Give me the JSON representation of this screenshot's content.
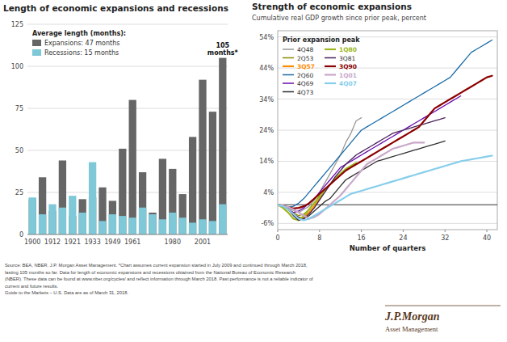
{
  "chart_data": [
    {
      "type": "bar",
      "title": "Length of economic expansions and recessions",
      "legend_title": "Average length (months):",
      "categories": [
        "1900",
        null,
        "1912",
        null,
        "1921",
        null,
        "1933",
        null,
        "1949",
        null,
        "1961",
        null,
        null,
        null,
        "1980",
        null,
        null,
        "2001",
        null,
        null
      ],
      "series": [
        {
          "name": "Expansions: 47 months",
          "color": "#666666",
          "values": [
            21,
            34,
            14,
            44,
            11,
            21,
            22,
            28,
            20,
            51,
            80,
            37,
            13,
            45,
            39,
            24,
            58,
            92,
            73,
            105
          ]
        },
        {
          "name": "Recessions: 15 months",
          "color": "#7EC8D8",
          "values": [
            22,
            12,
            18,
            16,
            23,
            13,
            43,
            8,
            12,
            11,
            10,
            16,
            12,
            9,
            13,
            10,
            7,
            9,
            8,
            18
          ]
        }
      ],
      "stacked": false,
      "ylim": [
        0,
        125
      ],
      "yticks": [
        0,
        25,
        50,
        75,
        100,
        125
      ],
      "grid": true,
      "legend": "upper left",
      "annotations": [
        {
          "text": "105\nmonths*",
          "x": 19,
          "y": 105
        }
      ]
    },
    {
      "type": "line",
      "title": "Strength of economic expansions",
      "subtitle": "Cumulative real GDP growth since prior peak, percent",
      "xlabel": "Number of quarters",
      "legend_title": "Prior expansion peak",
      "series": [
        {
          "name": "4Q48",
          "color": "#999999",
          "line_style": "solid",
          "x": [
            0,
            1,
            2,
            3,
            4,
            5,
            6,
            7,
            8,
            9,
            10,
            11,
            12,
            13,
            14,
            15,
            16
          ],
          "values": [
            0,
            -0.5,
            -1.2,
            -1.8,
            -2.5,
            -1.5,
            -0.5,
            1.5,
            4,
            7,
            10,
            13,
            16,
            20,
            23,
            27,
            28
          ]
        },
        {
          "name": "2Q53",
          "color": "#8B8B00",
          "line_style": "solid",
          "x": [
            0,
            1,
            2,
            3,
            4,
            5,
            6,
            7,
            8
          ],
          "values": [
            0,
            -0.5,
            -1.5,
            -2.5,
            -3.5,
            -3.0,
            -1.5,
            0.5,
            3
          ]
        },
        {
          "name": "3Q57",
          "color": "#FF8C00",
          "line_style": "thick",
          "x": [
            0,
            1,
            2,
            3,
            4,
            5,
            6,
            7,
            8,
            9
          ],
          "values": [
            0,
            -0.5,
            -1.5,
            -3.0,
            -4.5,
            -4.0,
            -2.5,
            -0.5,
            2,
            5
          ]
        },
        {
          "name": "2Q60",
          "color": "#1B6CA8",
          "line_style": "solid",
          "x": [
            0,
            1,
            2,
            3,
            4,
            5,
            6,
            7,
            8,
            9,
            10,
            11,
            12,
            13,
            14,
            15,
            16,
            17,
            18,
            19,
            20,
            21,
            22,
            23,
            24,
            25,
            26,
            27,
            28,
            29,
            30,
            31,
            32,
            33,
            34,
            35,
            36,
            37,
            38,
            39,
            40,
            41
          ],
          "values": [
            0,
            -0.3,
            -0.8,
            -0.5,
            0.5,
            2,
            4,
            6,
            8,
            10,
            12,
            14,
            16,
            18,
            20,
            22,
            24,
            25,
            26,
            27,
            28,
            29,
            30,
            31,
            32,
            33,
            34,
            35,
            36,
            37,
            38,
            39,
            40,
            41,
            43,
            45,
            47,
            49,
            50,
            51,
            52,
            53
          ]
        },
        {
          "name": "4Q69",
          "color": "#6A0DAD",
          "line_style": "solid",
          "x": [
            0,
            1,
            2,
            3,
            4,
            5,
            6,
            7,
            8,
            9,
            10,
            11,
            12,
            13,
            14,
            15,
            16,
            17,
            18,
            19,
            20,
            21,
            22,
            23,
            24,
            25,
            26,
            27,
            28,
            29,
            30,
            31,
            32,
            33,
            34,
            35
          ],
          "values": [
            0,
            -0.5,
            -1.5,
            -2.5,
            -2.0,
            -1.0,
            0.5,
            2,
            4,
            6,
            8,
            10,
            12,
            13,
            14,
            15,
            16,
            17,
            18,
            19,
            20,
            21,
            22,
            23,
            24,
            25,
            26,
            27,
            28,
            29,
            30,
            31,
            32,
            33,
            34,
            35
          ]
        },
        {
          "name": "4Q73",
          "color": "#2F2F2F",
          "line_style": "solid",
          "x": [
            0,
            1,
            2,
            3,
            4,
            5,
            6,
            7,
            8,
            9,
            10,
            11,
            12,
            13,
            14,
            15,
            16,
            17,
            18,
            19,
            20,
            21,
            22,
            23,
            24,
            25,
            26,
            27,
            28,
            29,
            30,
            31,
            32
          ],
          "values": [
            0,
            -0.5,
            -1.5,
            -3.0,
            -4.0,
            -4.5,
            -3.5,
            -2.0,
            -0.5,
            1,
            2,
            4,
            6,
            8,
            9,
            10,
            11,
            12,
            13,
            14,
            14.5,
            15,
            15.5,
            16,
            16.5,
            17,
            17.5,
            18,
            18.5,
            19,
            19.5,
            20,
            20.5
          ]
        },
        {
          "name": "1Q80",
          "color": "#9DB820",
          "line_style": "thick",
          "x": [
            0,
            1,
            2,
            3,
            4,
            5,
            6,
            7,
            8,
            9,
            10,
            11,
            12,
            13,
            14,
            15
          ],
          "values": [
            0,
            -1.0,
            -2.5,
            -4.5,
            -5.0,
            -3.5,
            -1.5,
            0.5,
            2.5,
            4.5,
            6.5,
            8.5,
            10,
            11.5,
            12.5,
            13.5
          ]
        },
        {
          "name": "3Q81",
          "color": "#4A235A",
          "line_style": "solid",
          "x": [
            0,
            1,
            2,
            3,
            4,
            5,
            6,
            7,
            8,
            9,
            10,
            11,
            12,
            13,
            14,
            15,
            16,
            17,
            18,
            19,
            20,
            21,
            22,
            23,
            24,
            25,
            26,
            27,
            28,
            29,
            30,
            31,
            32
          ],
          "values": [
            0,
            -0.5,
            -1.5,
            -3.5,
            -5.0,
            -4.5,
            -3.0,
            -1.0,
            1.5,
            4,
            6.5,
            9,
            11,
            13,
            14.5,
            16,
            17,
            18,
            19,
            20,
            21,
            22,
            23,
            23.5,
            24,
            24.5,
            25,
            25.5,
            26,
            26.5,
            27,
            27.5,
            28
          ]
        },
        {
          "name": "3Q90",
          "color": "#8B0000",
          "line_style": "thick",
          "x": [
            0,
            1,
            2,
            3,
            4,
            5,
            6,
            7,
            8,
            9,
            10,
            11,
            12,
            13,
            14,
            15,
            16,
            17,
            18,
            19,
            20,
            21,
            22,
            23,
            24,
            25,
            26,
            27,
            28,
            29,
            30,
            31,
            32,
            33,
            34,
            35,
            36,
            37,
            38,
            39,
            40,
            41
          ],
          "values": [
            0,
            -0.3,
            -0.8,
            -1.2,
            -1.0,
            -0.5,
            0.5,
            2,
            3.5,
            5,
            6.5,
            8,
            9.5,
            11,
            12,
            13,
            14,
            15,
            16,
            17,
            18,
            19,
            20,
            21,
            22,
            23,
            24,
            25,
            27,
            29,
            31,
            32,
            33,
            34,
            35,
            36,
            37,
            38,
            39,
            40,
            41,
            41.5
          ]
        },
        {
          "name": "1Q01",
          "color": "#C9A8C9",
          "line_style": "thick",
          "x": [
            0,
            1,
            2,
            3,
            4,
            5,
            6,
            7,
            8,
            9,
            10,
            11,
            12,
            13,
            14,
            15,
            16,
            17,
            18,
            19,
            20,
            21,
            22,
            23,
            24,
            25,
            26,
            27,
            28
          ],
          "values": [
            0,
            -0.3,
            -0.8,
            -1.5,
            -2.5,
            -3.5,
            -4.5,
            -4.0,
            -3.0,
            -1.5,
            0,
            1.5,
            3,
            5,
            7,
            9,
            11,
            13,
            14,
            15,
            16,
            17,
            18,
            18.5,
            19,
            19.5,
            20,
            20,
            20
          ]
        },
        {
          "name": "4Q07",
          "color": "#87CEEB",
          "line_style": "thick",
          "x": [
            0,
            1,
            2,
            3,
            4,
            5,
            6,
            7,
            8,
            9,
            10,
            11,
            12,
            13,
            14,
            15,
            16,
            17,
            18,
            19,
            20,
            21,
            22,
            23,
            24,
            25,
            26,
            27,
            28,
            29,
            30,
            31,
            32,
            33,
            34,
            35,
            36,
            37,
            38,
            39,
            40,
            41
          ],
          "values": [
            0,
            -0.5,
            -1.5,
            -3.0,
            -4.5,
            -5.0,
            -4.5,
            -3.5,
            -2.5,
            -1.5,
            -0.5,
            0.5,
            1.5,
            2.5,
            3.5,
            4.0,
            4.5,
            5.0,
            5.5,
            6.0,
            6.5,
            7.0,
            7.5,
            8.0,
            8.5,
            9.0,
            9.5,
            10.0,
            10.5,
            11.0,
            11.5,
            12.0,
            12.5,
            13.0,
            13.5,
            14.0,
            14.3,
            14.6,
            14.9,
            15.2,
            15.5,
            15.8
          ]
        }
      ],
      "hline": 0,
      "xlim": [
        0,
        42
      ],
      "xticks": [
        0,
        8,
        16,
        24,
        32,
        40
      ],
      "ylim": [
        -8,
        56
      ],
      "yticks": [
        {
          "value": -6,
          "label": "-6%"
        },
        {
          "value": 4,
          "label": "4%"
        },
        {
          "value": 14,
          "label": "14%"
        },
        {
          "value": 24,
          "label": "24%"
        },
        {
          "value": 34,
          "label": "34%"
        },
        {
          "value": 44,
          "label": "44%"
        },
        {
          "value": 54,
          "label": "54%"
        }
      ],
      "grid": true,
      "legend": "upper left"
    }
  ],
  "footer": [
    "Source: BEA, NBER, J.P. Morgan Asset Management. *Chart assumes current expansion started in July 2009 and continued through March 2018,",
    "lasting 105 months so far. Data for length of economic expansions and recessions obtained from the National Bureau of Economic Research",
    "(NBER). These data can be found at www.nber.org/cycles/ and reflect information through March 2018. Past performance is not a reliable indicator of",
    "current and future results.",
    "Guide to the Markets – U.S. Data are as of March 31, 2018."
  ],
  "logo": {
    "name": "J.P.Morgan",
    "tagline": "Asset Management"
  }
}
